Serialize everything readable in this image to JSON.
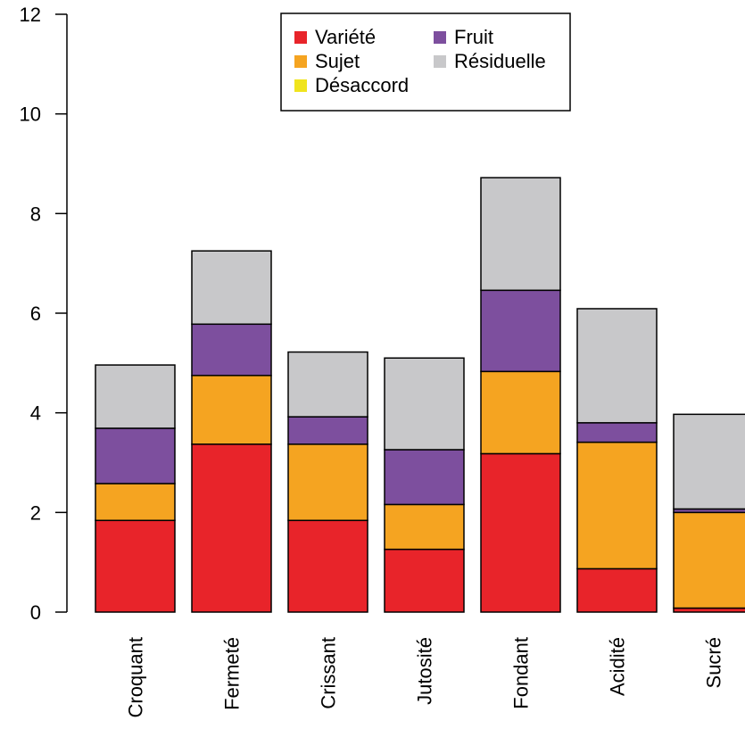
{
  "chart_data": {
    "type": "bar",
    "stacked": true,
    "categories": [
      "Croquant",
      "Fermeté",
      "Crissant",
      "Jutosité",
      "Fondant",
      "Acidité",
      "Sucré"
    ],
    "series": [
      {
        "name": "Variété",
        "color": "#e8242a",
        "values": [
          1.84,
          3.37,
          1.84,
          1.26,
          3.18,
          0.87,
          0.08
        ]
      },
      {
        "name": "Sujet",
        "color": "#f5a421",
        "values": [
          0.74,
          1.38,
          1.53,
          0.9,
          1.65,
          2.54,
          1.92
        ]
      },
      {
        "name": "Désaccord",
        "color": "#f0e41e",
        "values": [
          0.0,
          0.0,
          0.0,
          0.0,
          0.0,
          0.0,
          0.0
        ]
      },
      {
        "name": "Fruit",
        "color": "#7d4f9e",
        "values": [
          1.11,
          1.03,
          0.55,
          1.1,
          1.63,
          0.39,
          0.07
        ]
      },
      {
        "name": "Résiduelle",
        "color": "#c8c8ca",
        "values": [
          1.27,
          1.47,
          1.3,
          1.84,
          2.26,
          2.29,
          1.9
        ]
      }
    ],
    "ylim": [
      0,
      12
    ],
    "yticks": [
      "0",
      "2",
      "4",
      "6",
      "8",
      "10",
      "12"
    ],
    "grid": false,
    "legend_position": "top-center",
    "title": "",
    "xlabel": "",
    "ylabel": ""
  }
}
